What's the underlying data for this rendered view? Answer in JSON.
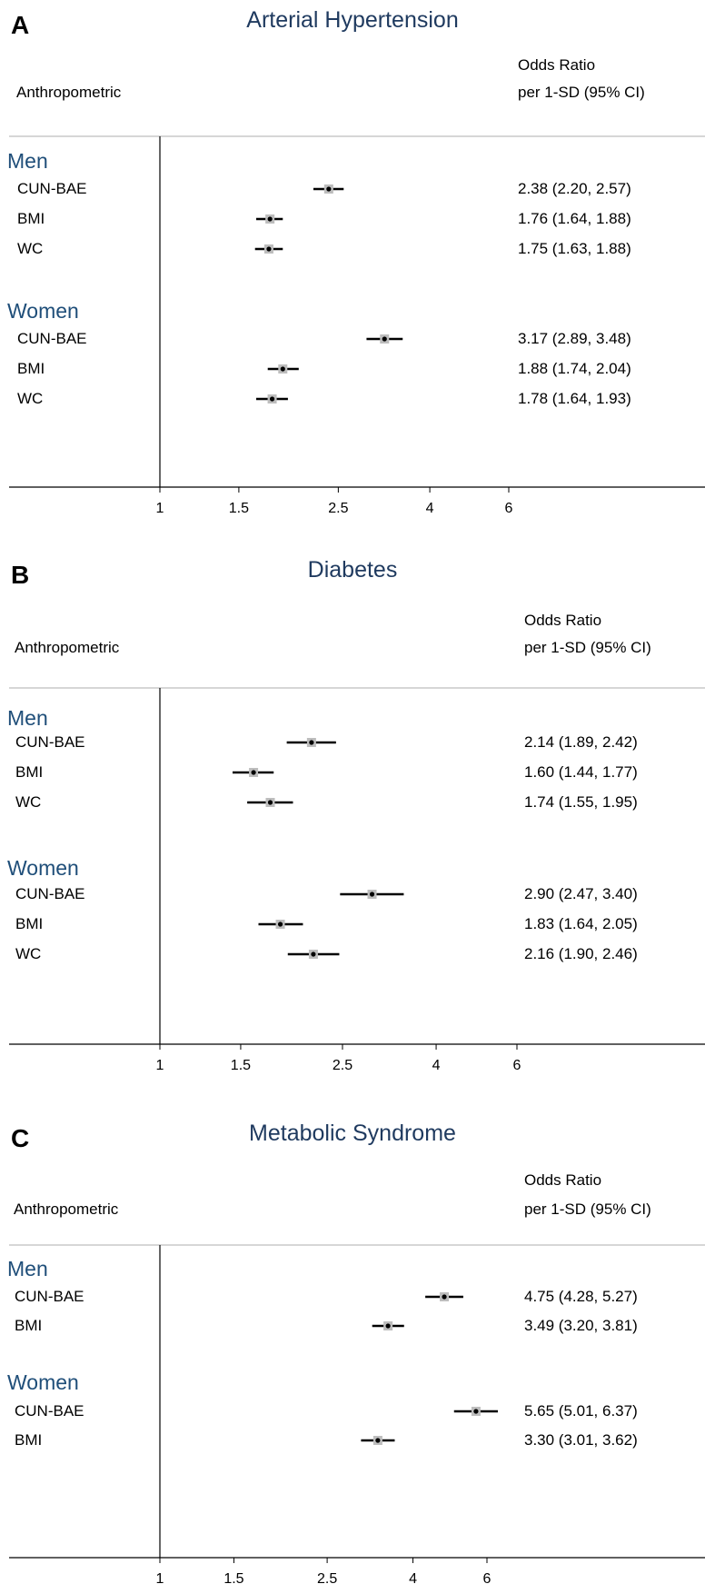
{
  "chart_data": [
    {
      "type": "forest",
      "panel_letter": "A",
      "title": "Arterial Hypertension",
      "left_header": "Anthropometric",
      "right_header": [
        "Odds Ratio",
        "per 1-SD (95% CI)"
      ],
      "x_scale": "log",
      "xticks": [
        1,
        1.5,
        2.5,
        4,
        6
      ],
      "xtick_labels": [
        "1",
        "1.5",
        "2.5",
        "4",
        "6"
      ],
      "groups": [
        {
          "name": "Men",
          "rows": [
            {
              "label": "CUN-BAE",
              "or": 2.38,
              "lo": 2.2,
              "hi": 2.57,
              "text": "2.38 (2.20, 2.57)"
            },
            {
              "label": "BMI",
              "or": 1.76,
              "lo": 1.64,
              "hi": 1.88,
              "text": "1.76 (1.64, 1.88)"
            },
            {
              "label": "WC",
              "or": 1.75,
              "lo": 1.63,
              "hi": 1.88,
              "text": "1.75 (1.63, 1.88)"
            }
          ]
        },
        {
          "name": "Women",
          "rows": [
            {
              "label": "CUN-BAE",
              "or": 3.17,
              "lo": 2.89,
              "hi": 3.48,
              "text": "3.17 (2.89, 3.48)"
            },
            {
              "label": "BMI",
              "or": 1.88,
              "lo": 1.74,
              "hi": 2.04,
              "text": "1.88 (1.74, 2.04)"
            },
            {
              "label": "WC",
              "or": 1.78,
              "lo": 1.64,
              "hi": 1.93,
              "text": "1.78 (1.64, 1.93)"
            }
          ]
        }
      ]
    },
    {
      "type": "forest",
      "panel_letter": "B",
      "title": "Diabetes",
      "left_header": "Anthropometric",
      "right_header": [
        "Odds Ratio",
        "per 1-SD (95% CI)"
      ],
      "x_scale": "log",
      "xticks": [
        1,
        1.5,
        2.5,
        4,
        6
      ],
      "xtick_labels": [
        "1",
        "1.5",
        "2.5",
        "4",
        "6"
      ],
      "groups": [
        {
          "name": "Men",
          "rows": [
            {
              "label": "CUN-BAE",
              "or": 2.14,
              "lo": 1.89,
              "hi": 2.42,
              "text": "2.14 (1.89, 2.42)"
            },
            {
              "label": "BMI",
              "or": 1.6,
              "lo": 1.44,
              "hi": 1.77,
              "text": "1.60 (1.44, 1.77)"
            },
            {
              "label": "WC",
              "or": 1.74,
              "lo": 1.55,
              "hi": 1.95,
              "text": "1.74 (1.55, 1.95)"
            }
          ]
        },
        {
          "name": "Women",
          "rows": [
            {
              "label": "CUN-BAE",
              "or": 2.9,
              "lo": 2.47,
              "hi": 3.4,
              "text": "2.90 (2.47, 3.40)"
            },
            {
              "label": "BMI",
              "or": 1.83,
              "lo": 1.64,
              "hi": 2.05,
              "text": "1.83 (1.64, 2.05)"
            },
            {
              "label": "WC",
              "or": 2.16,
              "lo": 1.9,
              "hi": 2.46,
              "text": "2.16 (1.90, 2.46)"
            }
          ]
        }
      ]
    },
    {
      "type": "forest",
      "panel_letter": "C",
      "title": "Metabolic Syndrome",
      "left_header": "Anthropometric",
      "right_header": [
        "Odds Ratio",
        "per 1-SD (95% CI)"
      ],
      "x_scale": "log",
      "xticks": [
        1,
        1.5,
        2.5,
        4,
        6
      ],
      "xtick_labels": [
        "1",
        "1.5",
        "2.5",
        "4",
        "6"
      ],
      "groups": [
        {
          "name": "Men",
          "rows": [
            {
              "label": "CUN-BAE",
              "or": 4.75,
              "lo": 4.28,
              "hi": 5.27,
              "text": "4.75 (4.28, 5.27)"
            },
            {
              "label": "BMI",
              "or": 3.49,
              "lo": 3.2,
              "hi": 3.81,
              "text": "3.49 (3.20, 3.81)"
            }
          ]
        },
        {
          "name": "Women",
          "rows": [
            {
              "label": "CUN-BAE",
              "or": 5.65,
              "lo": 5.01,
              "hi": 6.37,
              "text": "5.65 (5.01, 6.37)"
            },
            {
              "label": "BMI",
              "or": 3.3,
              "lo": 3.01,
              "hi": 3.62,
              "text": "3.30 (3.01, 3.62)"
            }
          ]
        }
      ]
    }
  ]
}
